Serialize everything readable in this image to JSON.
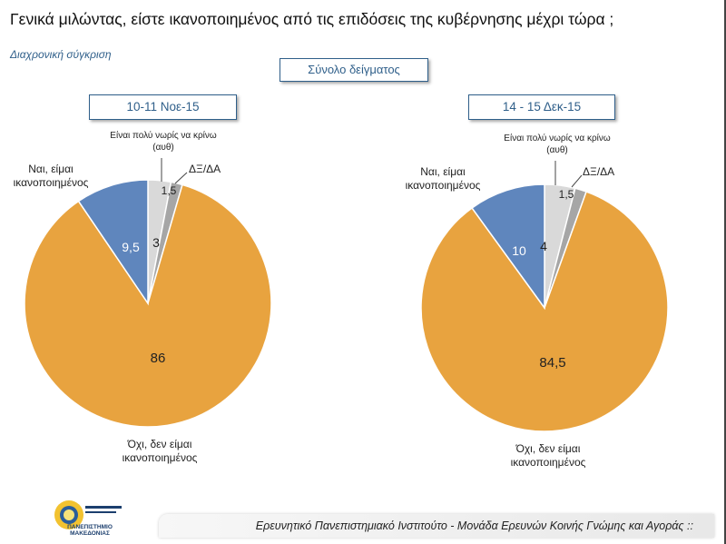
{
  "title": "Γενικά μιλώντας, είστε ικανοποιημένος από τις επιδόσεις της κυβέρνησης μέχρι τώρα ;",
  "subtitle": "Διαχρονική σύγκριση",
  "sample_label": "Σύνολο δείγματος",
  "footer": "Ερευνητικό Πανεπιστημιακό Ινστιτούτο - Μονάδα Ερευνών Κοινής Γνώμης και Αγοράς ::",
  "logo_text": "ΠΑΝΕΠΙΣΤΗΜΙΟ ΜΑΚΕΔΟΝΙΑΣ",
  "chart_data": [
    {
      "type": "pie",
      "title": "10-11 Noε-15",
      "categories": [
        "Είναι πολύ νωρίς να κρίνω (αυθ)",
        "ΔΞ/ΔΑ",
        "Όχι, δεν είμαι ικανοποιημένος",
        "Ναι, είμαι ικανοποιημένος"
      ],
      "values": [
        3,
        1.5,
        86,
        9.5
      ],
      "value_labels": [
        "3",
        "1,5",
        "86",
        "9,5"
      ],
      "colors": [
        "#d9d9d9",
        "#a6a6a6",
        "#e8a33f",
        "#5f86bd"
      ]
    },
    {
      "type": "pie",
      "title": "14 - 15 Δεκ-15",
      "categories": [
        "Είναι πολύ νωρίς να κρίνω (αυθ)",
        "ΔΞ/ΔΑ",
        "Όχι, δεν είμαι ικανοποιημένος",
        "Ναι, είμαι ικανοποιημένος"
      ],
      "values": [
        4,
        1.5,
        84.5,
        10
      ],
      "value_labels": [
        "4",
        "1,5",
        "84,5",
        "10"
      ],
      "colors": [
        "#d9d9d9",
        "#a6a6a6",
        "#e8a33f",
        "#5f86bd"
      ]
    }
  ]
}
